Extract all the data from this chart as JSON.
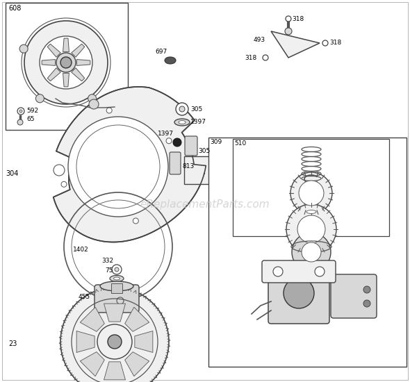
{
  "background_color": "#ffffff",
  "watermark": "eReplacementParts.com",
  "watermark_color": "#cccccc",
  "fig_width": 5.9,
  "fig_height": 5.5,
  "dpi": 100,
  "line_color": "#333333",
  "fill_light": "#f0f0f0",
  "fill_mid": "#d8d8d8",
  "fill_dark": "#aaaaaa"
}
